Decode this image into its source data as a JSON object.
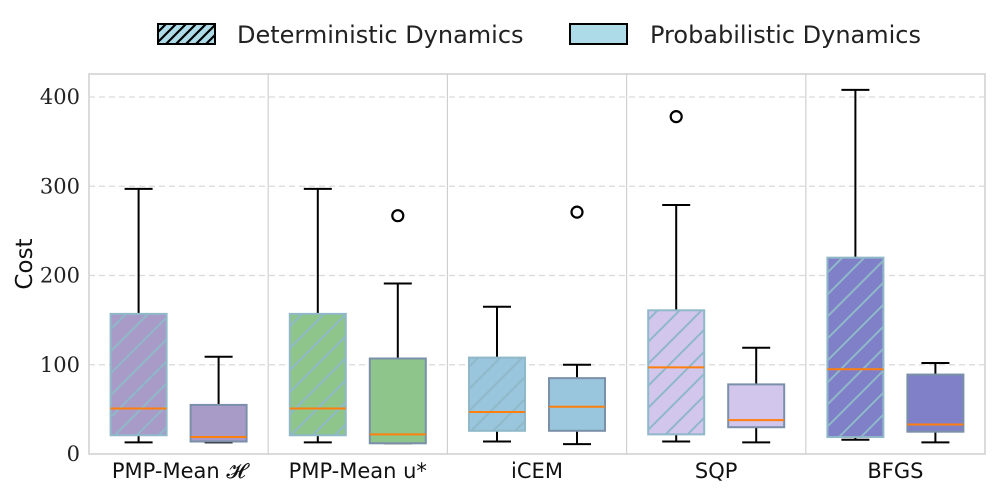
{
  "chart_data": {
    "type": "box",
    "ylabel": "Cost",
    "xlabel": "",
    "ylim": [
      0,
      425
    ],
    "yticks": [
      0,
      100,
      200,
      300,
      400
    ],
    "grid_y": true,
    "legend": {
      "placement": "top-center",
      "entries": [
        {
          "label": "Deterministic Dynamics",
          "style": "hatched"
        },
        {
          "label": "Probabilistic Dynamics",
          "style": "solid"
        }
      ]
    },
    "colors": {
      "purple": "#a89bc8",
      "green": "#8ec58a",
      "blue": "#99c6dc",
      "lavender": "#d2c6ec",
      "indigo": "#8080c8",
      "median": "#ff7f0e",
      "hatch": "#8fb8c8",
      "whisker": "#000000",
      "grid": "#d9d9d9"
    },
    "categories": [
      "PMP-Mean 𝓗",
      "PMP-Mean u*",
      "iCEM",
      "SQP",
      "BFGS"
    ],
    "groups": [
      {
        "category": "PMP-Mean 𝓗",
        "color": "purple",
        "deterministic": {
          "min": 13,
          "q1": 21,
          "median": 51,
          "q3": 157,
          "max": 297,
          "outliers": []
        },
        "probabilistic": {
          "min": 13,
          "q1": 14,
          "median": 19,
          "q3": 55,
          "max": 109,
          "outliers": []
        }
      },
      {
        "category": "PMP-Mean u*",
        "color": "green",
        "deterministic": {
          "min": 13,
          "q1": 21,
          "median": 51,
          "q3": 157,
          "max": 297,
          "outliers": []
        },
        "probabilistic": {
          "min": 12,
          "q1": 12,
          "median": 22,
          "q3": 107,
          "max": 191,
          "outliers": [
            267
          ]
        }
      },
      {
        "category": "iCEM",
        "color": "blue",
        "deterministic": {
          "min": 14,
          "q1": 26,
          "median": 47,
          "q3": 108,
          "max": 165,
          "outliers": []
        },
        "probabilistic": {
          "min": 11,
          "q1": 26,
          "median": 53,
          "q3": 85,
          "max": 100,
          "outliers": [
            271
          ]
        }
      },
      {
        "category": "SQP",
        "color": "lavender",
        "deterministic": {
          "min": 14,
          "q1": 22,
          "median": 97,
          "q3": 161,
          "max": 279,
          "outliers": [
            378
          ]
        },
        "probabilistic": {
          "min": 13,
          "q1": 30,
          "median": 38,
          "q3": 78,
          "max": 119,
          "outliers": []
        }
      },
      {
        "category": "BFGS",
        "color": "indigo",
        "deterministic": {
          "min": 16,
          "q1": 19,
          "median": 95,
          "q3": 220,
          "max": 408,
          "outliers": []
        },
        "probabilistic": {
          "min": 13,
          "q1": 25,
          "median": 33,
          "q3": 89,
          "max": 102,
          "outliers": []
        }
      }
    ]
  }
}
